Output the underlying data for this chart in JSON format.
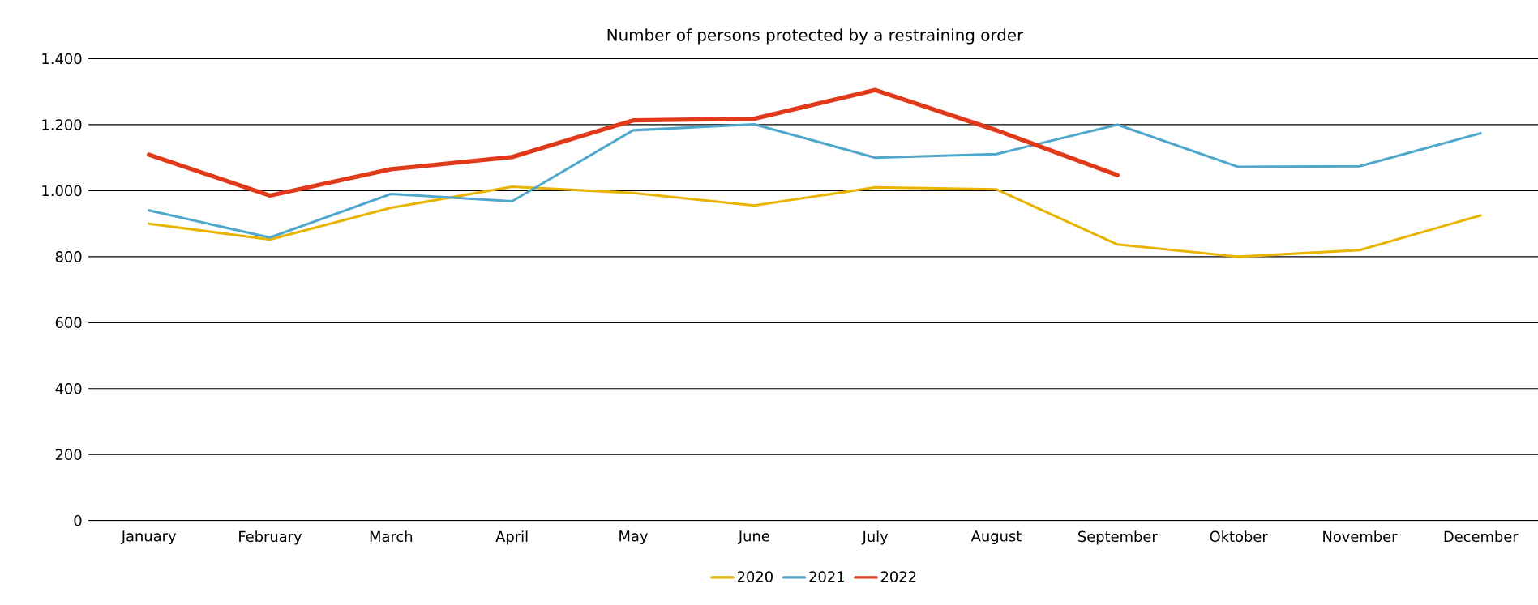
{
  "chart_data": {
    "type": "line",
    "title": "Number of persons protected by a restraining order",
    "categories": [
      "January",
      "February",
      "March",
      "April",
      "May",
      "June",
      "July",
      "August",
      "September",
      "Oktober",
      "November",
      "December"
    ],
    "series": [
      {
        "name": "2020",
        "color": "#e8b400",
        "values": [
          900,
          852,
          948,
          1012,
          993,
          955,
          1010,
          1004,
          837,
          800,
          820,
          925
        ]
      },
      {
        "name": "2021",
        "color": "#4fa8cc",
        "values": [
          940,
          858,
          990,
          968,
          1183,
          1201,
          1100,
          1111,
          1200,
          1072,
          1074,
          1174
        ]
      },
      {
        "name": "2022",
        "color": "#e03a1a",
        "values": [
          1109,
          985,
          1065,
          1102,
          1213,
          1218,
          1305,
          1183,
          1047,
          null,
          null,
          null
        ]
      }
    ],
    "ylim": [
      0,
      1400
    ],
    "yticks": [
      0,
      200,
      400,
      600,
      800,
      {
        "value": 1000,
        "label": "1.000"
      },
      {
        "value": 1200,
        "label": "1.200"
      },
      {
        "value": 1400,
        "label": "1.400"
      }
    ],
    "grid": "y",
    "legend": "bottom",
    "marker": "none",
    "line_style": "solid"
  }
}
